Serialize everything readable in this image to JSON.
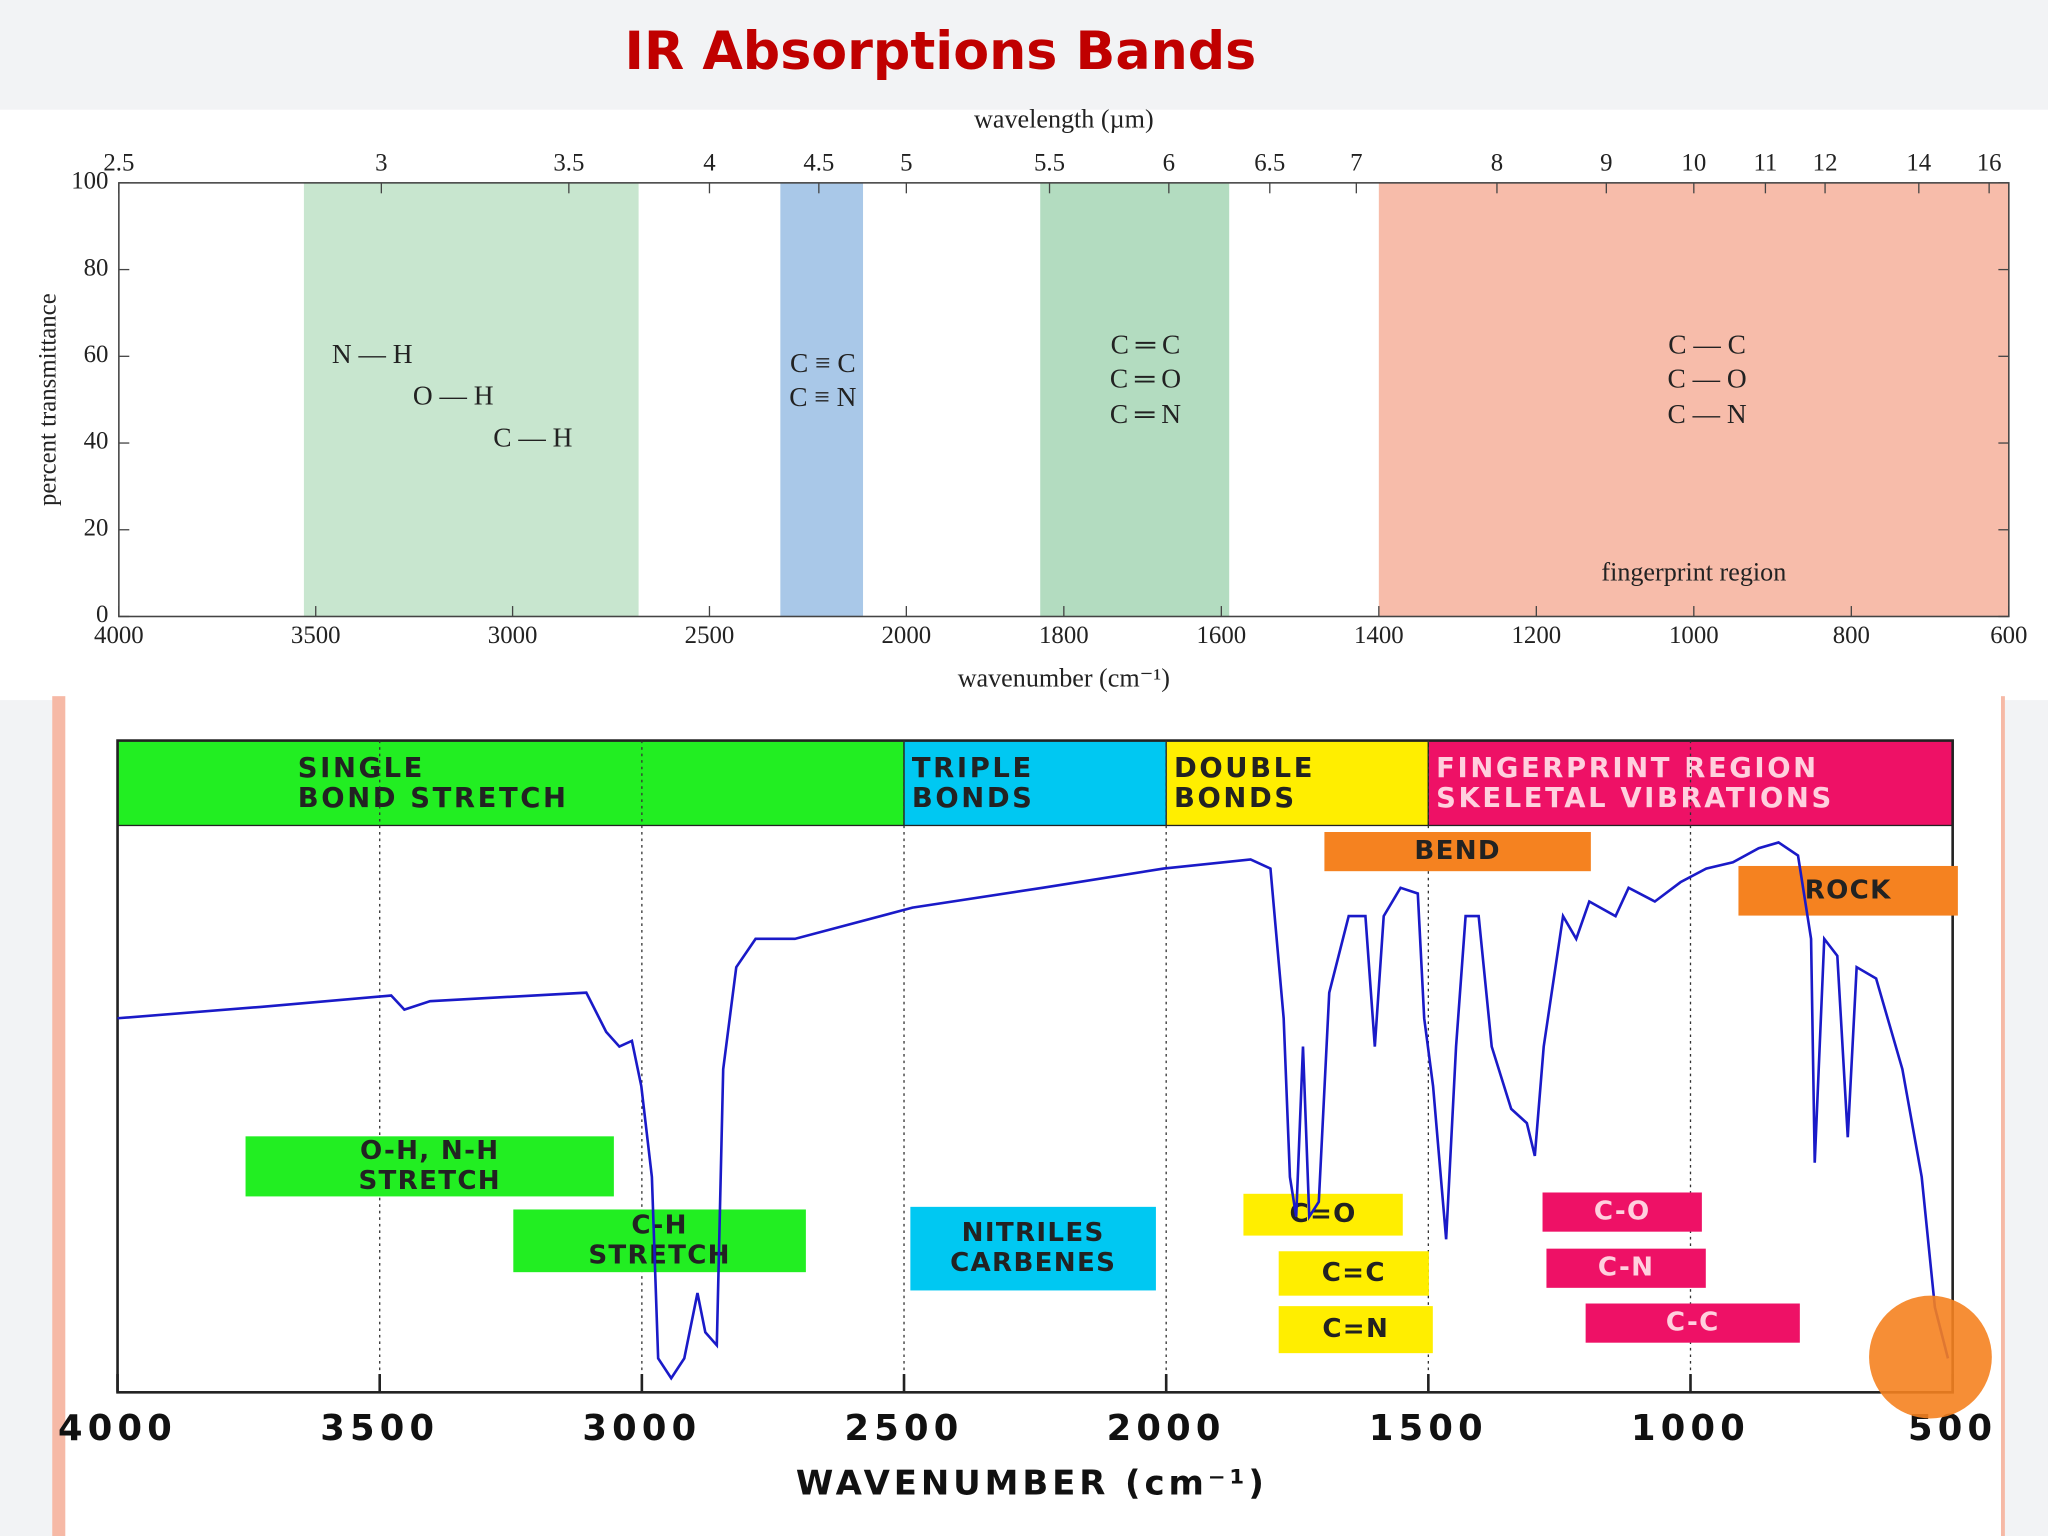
{
  "chart_data": [
    {
      "type": "band",
      "title": "IR Absorptions Bands",
      "xlabel": "wavenumber (cm⁻¹)",
      "x2label": "wavelength (µm)",
      "ylabel": "percent transmittance",
      "xlim": [
        4000,
        600
      ],
      "xbreak": 2000,
      "xticks": [
        4000,
        3500,
        3000,
        2500,
        2000,
        1800,
        1600,
        1400,
        1200,
        1000,
        800,
        600
      ],
      "x2ticks": [
        2.5,
        3,
        3.5,
        4,
        4.5,
        5,
        5.5,
        6,
        6.5,
        7,
        8,
        9,
        10,
        11,
        12,
        14,
        16
      ],
      "ylim": [
        0,
        100
      ],
      "yticks": [
        0,
        20,
        40,
        60,
        80,
        100
      ],
      "regions": [
        {
          "from": 3530,
          "to": 2680,
          "color": "#c8e6cf",
          "labels": [
            "N — H",
            "O — H",
            "C — H"
          ]
        },
        {
          "from": 2320,
          "to": 2110,
          "color": "#a9c8e8",
          "labels": [
            "C ≡ C",
            "C ≡ N"
          ]
        },
        {
          "from": 1830,
          "to": 1590,
          "color": "#b3dcc0",
          "labels": [
            "C ═ C",
            "C ═ O",
            "C ═ N"
          ]
        },
        {
          "from": 1400,
          "to": 600,
          "color": "#f7bcaa",
          "labels": [
            "C — C",
            "C — O",
            "C — N"
          ],
          "note": "fingerprint region"
        }
      ]
    },
    {
      "type": "line",
      "xlabel": "WAVENUMBER (cm⁻¹)",
      "xlim": [
        4000,
        500
      ],
      "xticks": [
        4000,
        3500,
        3000,
        2500,
        2000,
        1500,
        1000,
        500
      ],
      "ylim": [
        0,
        100
      ],
      "grid": "dotted",
      "color": "#1a1ac8",
      "x": [
        4000,
        3727,
        3478,
        3453,
        3404,
        3106,
        3068,
        3043,
        3019,
        3001,
        2981,
        2969,
        2944,
        2919,
        2894,
        2879,
        2857,
        2845,
        2820,
        2783,
        2708,
        2484,
        2236,
        2005,
        1839,
        1801,
        1776,
        1764,
        1752,
        1739,
        1727,
        1709,
        1689,
        1652,
        1620,
        1602,
        1585,
        1553,
        1520,
        1508,
        1491,
        1466,
        1447,
        1429,
        1404,
        1379,
        1342,
        1312,
        1297,
        1280,
        1243,
        1218,
        1193,
        1143,
        1118,
        1068,
        1019,
        970,
        919,
        870,
        832,
        795,
        770,
        763,
        745,
        720,
        700,
        683,
        646,
        596,
        559,
        534,
        509
      ],
      "values": [
        66,
        68,
        70,
        67.5,
        69,
        70.5,
        63.6,
        61,
        62,
        54,
        38,
        6,
        2.5,
        6,
        17.5,
        10.6,
        8.3,
        57,
        75,
        80,
        80,
        85.5,
        89,
        92.4,
        94,
        92.4,
        66,
        38,
        31,
        61,
        31,
        33.6,
        70.5,
        84,
        84,
        61,
        84,
        89,
        88,
        66,
        54,
        27,
        61,
        84,
        84,
        61,
        50,
        47.5,
        41.7,
        61,
        84,
        80,
        86.6,
        84,
        89,
        86.6,
        90,
        92.4,
        93.5,
        96,
        97,
        94.7,
        80,
        40.5,
        80,
        77,
        45,
        75,
        73,
        57,
        38,
        15,
        6
      ],
      "bands": [
        {
          "from": 4000,
          "to": 2500,
          "color": "#22ee22",
          "lines": [
            "SINGLE",
            "BOND STRETCH"
          ]
        },
        {
          "from": 2500,
          "to": 2000,
          "color": "#00c8f2",
          "lines": [
            "TRIPLE",
            "BONDS"
          ]
        },
        {
          "from": 2000,
          "to": 1500,
          "color": "#ffee00",
          "lines": [
            "DOUBLE",
            "BONDS"
          ]
        },
        {
          "from": 1500,
          "to": 500,
          "color": "#ee1166",
          "lines": [
            "FINGERPRINT REGION",
            "SKELETAL VIBRATIONS"
          ]
        }
      ],
      "annotations": [
        {
          "lines": [
            "O-H, N-H",
            "STRETCH"
          ],
          "color": "#22ee22"
        },
        {
          "lines": [
            "C-H",
            "STRETCH"
          ],
          "color": "#22ee22"
        },
        {
          "lines": [
            "NITRILES",
            "CARBENES"
          ],
          "color": "#00c8f2"
        },
        {
          "lines": [
            "C=O"
          ],
          "color": "#ffee00"
        },
        {
          "lines": [
            "C=C"
          ],
          "color": "#ffee00"
        },
        {
          "lines": [
            "C=N"
          ],
          "color": "#ffee00"
        },
        {
          "lines": [
            "C-O"
          ],
          "color": "#ee1166"
        },
        {
          "lines": [
            "C-N"
          ],
          "color": "#ee1166"
        },
        {
          "lines": [
            "C-C"
          ],
          "color": "#ee1166"
        },
        {
          "lines": [
            "BEND"
          ],
          "color": "#f58220"
        },
        {
          "lines": [
            "ROCK"
          ],
          "color": "#f58220"
        }
      ]
    }
  ]
}
